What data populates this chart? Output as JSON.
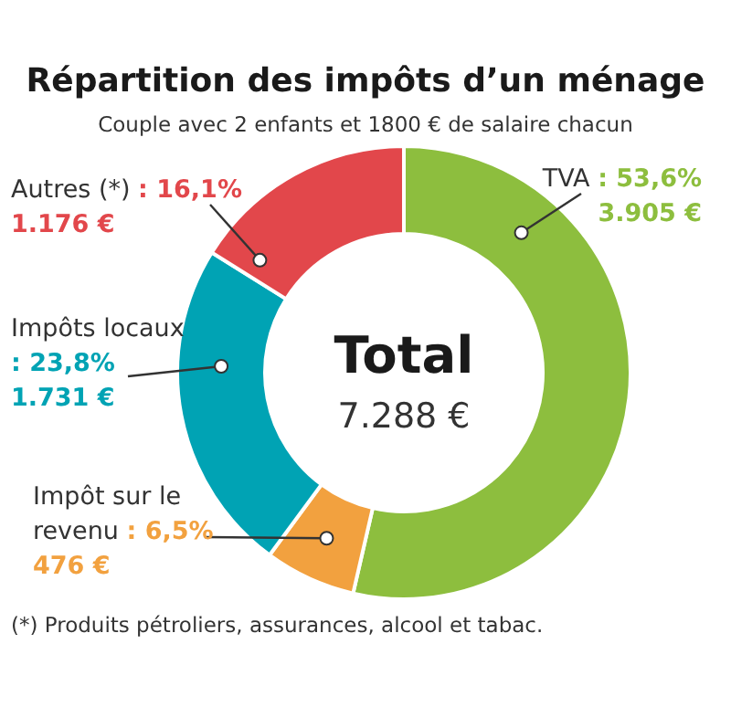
{
  "chart_data": {
    "type": "donut",
    "title": "Répartition des impôts d’un ménage",
    "subtitle": "Couple avec 2 enfants et 1800 € de salaire chacun",
    "categories": [
      "TVA",
      "Impôt sur le revenu",
      "Impôts locaux",
      "Autres (*)"
    ],
    "values": [
      53.6,
      6.5,
      23.8,
      16.1
    ],
    "colors": [
      "#8dbe3e",
      "#f2a13f",
      "#00a3b4",
      "#e2474b"
    ],
    "value_labels": [
      ": 53,6%\n3.905 €",
      ": 6,5%\n476 €",
      ": 23,8%\n1.731 €",
      ": 16,1%\n1.176 €"
    ],
    "annotations": [
      "Total",
      "7.288 €",
      "(*) Produits pétroliers, assurances, alcool et tabac."
    ]
  }
}
